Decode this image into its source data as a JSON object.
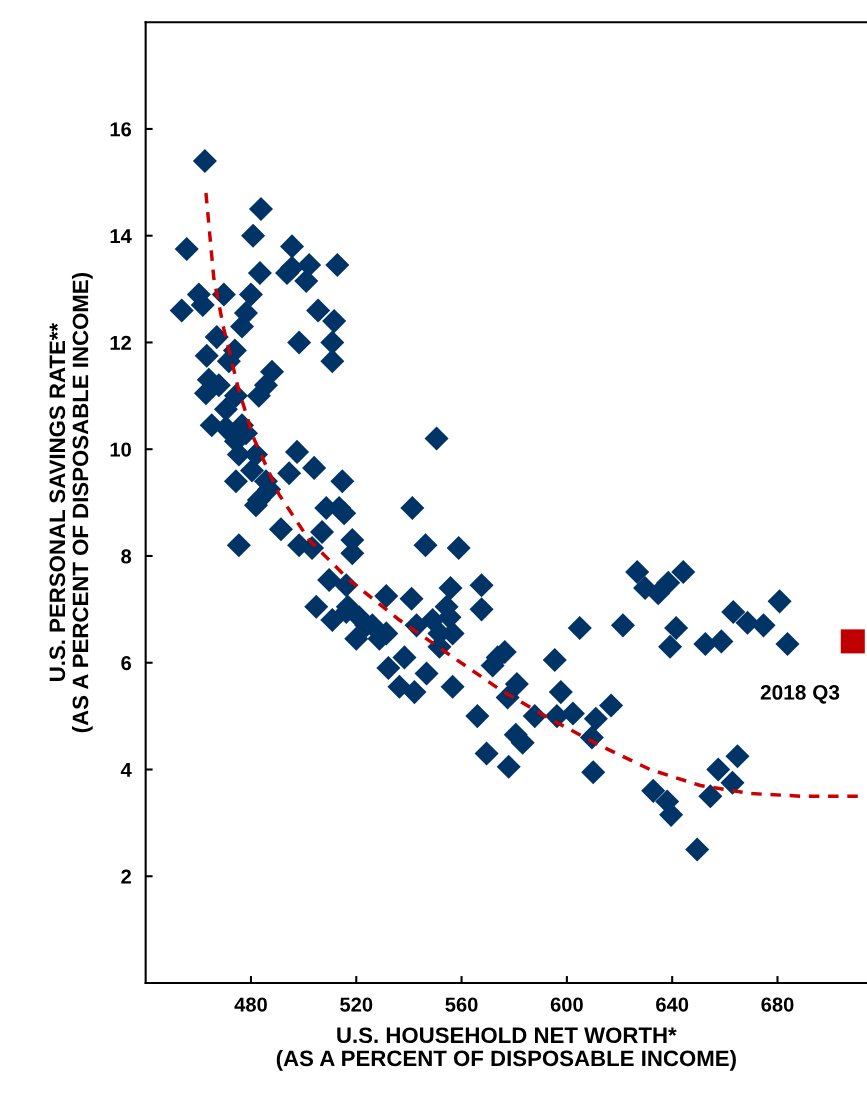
{
  "chart_data": {
    "type": "scatter",
    "xlabel": "U.S. HOUSEHOLD NET WORTH*\n(AS A PERCENT OF DISPOSABLE INCOME)",
    "ylabel": "U.S. PERSONAL SAVINGS RATE**\n(AS A PERCENT OF DISPOSABLE INCOME)",
    "xlim": [
      440,
      714
    ],
    "xticks": [
      480,
      520,
      560,
      600,
      640,
      680
    ],
    "ylim": [
      0,
      18
    ],
    "yticks": [
      2,
      4,
      6,
      8,
      10,
      12,
      14,
      16
    ],
    "grid": false,
    "series": [
      {
        "marker": "diamond",
        "color": "#003466",
        "x": [
          462.5,
          483.8,
          480.8,
          455.6,
          495.6,
          512.8,
          495.6,
          502.1,
          501,
          493.7,
          483.4,
          460.2,
          469.7,
          480,
          453.7,
          461.7,
          505.5,
          511.6,
          478.1,
          476.6,
          498.3,
          510.9,
          510.9,
          467,
          473.9,
          463.2,
          471.6,
          488,
          485.7,
          464,
          467.8,
          483,
          474.3,
          462.9,
          470.5,
          476.6,
          465.1,
          478.1,
          474.3,
          470.5,
          475.4,
          481.9,
          497.5,
          504,
          514.7,
          474.3,
          481.9,
          491.4,
          475.4,
          485.7,
          480.4,
          498.3,
          508.6,
          515.4,
          507,
          518.5,
          503.2,
          509.7,
          516.2,
          504.8,
          510.9,
          516.2,
          523.8,
          483,
          486.9,
          494.5,
          550.5,
          541.3,
          546.3,
          558.9,
          555.8,
          567.6,
          567.6,
          541,
          531.4,
          554.3,
          518.5,
          513.5,
          538.3,
          532.2,
          556.6,
          542.1,
          536.4,
          551.6,
          542.9,
          549,
          555.4,
          556.6,
          551.6,
          546.7,
          528.8,
          521.1,
          526.1,
          531.4,
          516.8,
          520,
          573.7,
          576.4,
          571.8,
          595.4,
          597.7,
          581,
          577.5,
          566,
          587.8,
          596.2,
          602.3,
          616.8,
          611,
          609.5,
          580.6,
          583.2,
          569.5,
          577.9,
          610,
          604.9,
          626.7,
          629.7,
          634.7,
          638.5,
          644.2,
          621.3,
          641.5,
          639.2,
          652.6,
          658.7,
          663.2,
          668.6,
          674.7,
          680.8,
          683.8,
          664.8,
          657.5,
          662.9,
          654.5,
          632.8,
          638.1,
          639.6,
          649.5
        ],
        "values": [
          15.4,
          14.5,
          14.0,
          13.75,
          13.8,
          13.45,
          13.4,
          13.45,
          13.15,
          13.3,
          13.3,
          12.9,
          12.9,
          12.9,
          12.6,
          12.7,
          12.6,
          12.4,
          12.55,
          12.3,
          12.0,
          12.0,
          11.65,
          12.1,
          11.85,
          11.75,
          11.65,
          11.45,
          11.2,
          11.3,
          11.2,
          11.0,
          11.0,
          11.05,
          10.75,
          10.45,
          10.45,
          10.3,
          10.15,
          10.4,
          9.9,
          9.9,
          9.95,
          9.65,
          9.4,
          9.4,
          8.95,
          8.5,
          8.2,
          9.4,
          9.6,
          8.2,
          8.9,
          8.8,
          8.45,
          8.3,
          8.15,
          7.55,
          7.45,
          7.05,
          6.8,
          6.95,
          6.7,
          9.05,
          9.25,
          9.55,
          10.2,
          8.9,
          8.2,
          8.15,
          7.4,
          7.45,
          7.0,
          7.2,
          7.25,
          7.05,
          8.05,
          8.9,
          6.1,
          5.9,
          5.55,
          5.45,
          5.55,
          6.55,
          6.7,
          6.8,
          6.85,
          6.55,
          6.3,
          5.8,
          6.45,
          6.85,
          6.7,
          6.55,
          7.05,
          6.45,
          6.1,
          6.2,
          5.95,
          6.05,
          5.45,
          5.6,
          5.35,
          5.0,
          5.0,
          5.0,
          5.05,
          5.2,
          4.95,
          4.6,
          4.65,
          4.5,
          4.3,
          4.05,
          3.95,
          6.65,
          7.7,
          7.4,
          7.3,
          7.5,
          7.7,
          6.7,
          6.65,
          6.3,
          6.35,
          6.4,
          6.95,
          6.75,
          6.7,
          7.15,
          6.35,
          4.25,
          4.0,
          3.75,
          3.5,
          3.6,
          3.4,
          3.15,
          2.5
        ]
      },
      {
        "type": "line",
        "line_style": "dashed",
        "marker": "none",
        "color": "#cc0000",
        "x": [
          462.9,
          465.9,
          469.7,
          475.4,
          481.1,
          490.7,
          502.1,
          517.3,
          536.4,
          555.4,
          574.5,
          593.5,
          612.6,
          631.6,
          650.7,
          669.7,
          688.8,
          710.5
        ],
        "values": [
          14.8,
          13.2,
          12.25,
          11.1,
          10.2,
          9.15,
          8.3,
          7.55,
          6.8,
          6.15,
          5.5,
          4.95,
          4.45,
          4.0,
          3.7,
          3.55,
          3.5,
          3.5
        ]
      },
      {
        "type": "scatter",
        "marker": "square",
        "color": "#c00000",
        "name": "2018 Q3",
        "x": [
          708.6
        ],
        "values": [
          6.4
        ]
      }
    ]
  }
}
